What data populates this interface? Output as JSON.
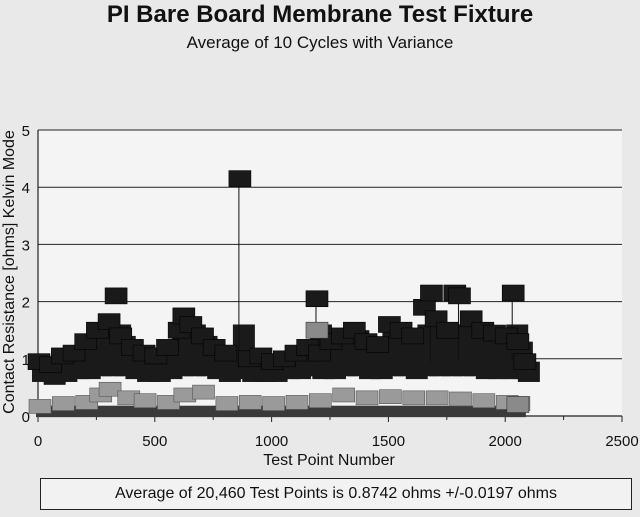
{
  "chart_data": {
    "type": "scatter",
    "title": "PI Bare Board Membrane Test Fixture",
    "subtitle": "Average of 10 Cycles with Variance",
    "xlabel": "Test Point Number",
    "ylabel": "Contact Resistance [ohms] Kelvin Mode",
    "xlim": [
      0,
      2500
    ],
    "ylim": [
      0,
      5
    ],
    "x_ticks": [
      0,
      500,
      1000,
      1500,
      2000,
      2500
    ],
    "y_ticks": [
      0,
      1,
      2,
      3,
      4,
      5
    ],
    "grid": "horizontal",
    "series": [
      {
        "values_x": [
          0,
          50,
          100,
          150,
          200,
          250,
          300,
          330,
          350,
          400,
          450,
          500,
          550,
          600,
          620,
          650,
          700,
          750,
          800,
          860,
          900,
          950,
          1000,
          1050,
          1100,
          1150,
          1190,
          1200,
          1250,
          1300,
          1350,
          1400,
          1450,
          1500,
          1550,
          1600,
          1650,
          1680,
          1700,
          1750,
          1780,
          1800,
          1850,
          1900,
          1950,
          2000,
          2030,
          2050,
          2080
        ],
        "values_y": [
          0.95,
          0.9,
          1.05,
          1.1,
          1.3,
          1.5,
          1.65,
          2.1,
          1.4,
          1.2,
          1.1,
          1.05,
          1.2,
          1.5,
          1.75,
          1.6,
          1.4,
          1.2,
          1.1,
          4.15,
          1.0,
          1.05,
          0.95,
          1.0,
          1.1,
          1.2,
          2.05,
          1.1,
          1.3,
          1.4,
          1.5,
          1.3,
          1.25,
          1.6,
          1.5,
          1.4,
          1.9,
          2.15,
          1.7,
          1.5,
          2.15,
          2.1,
          1.7,
          1.5,
          1.45,
          1.4,
          2.15,
          1.3,
          0.95
        ],
        "spread_low": [
          0.7,
          0.65,
          0.7,
          0.75,
          0.75,
          0.8,
          0.8,
          0.85,
          0.8,
          0.75,
          0.7,
          0.7,
          0.75,
          0.8,
          0.85,
          0.8,
          0.8,
          0.75,
          0.7,
          0.75,
          0.7,
          0.7,
          0.7,
          0.75,
          0.75,
          0.8,
          0.8,
          0.75,
          0.75,
          0.8,
          0.8,
          0.75,
          0.75,
          0.8,
          0.8,
          0.75,
          0.8,
          0.85,
          0.8,
          0.8,
          0.85,
          0.8,
          0.8,
          0.75,
          0.75,
          0.75,
          0.8,
          0.75,
          0.7
        ],
        "color": "#1a1a1a"
      },
      {
        "values_x": [
          0,
          100,
          200,
          260,
          300,
          380,
          450,
          550,
          620,
          700,
          800,
          900,
          1000,
          1100,
          1200,
          1300,
          1400,
          1500,
          1600,
          1700,
          1800,
          1900,
          2000,
          2050
        ],
        "values_y": [
          0.15,
          0.2,
          0.22,
          0.35,
          0.45,
          0.3,
          0.25,
          0.22,
          0.35,
          0.4,
          0.2,
          0.22,
          0.2,
          0.22,
          0.25,
          0.35,
          0.3,
          0.32,
          0.3,
          0.3,
          0.28,
          0.25,
          0.22,
          0.2
        ],
        "color": "#9a9a9a"
      },
      {
        "baseline_x": [
          0,
          2080
        ],
        "baseline_y": 0.05,
        "color": "#3a3a3a"
      }
    ],
    "outlier_stems": [
      {
        "x": 860,
        "y": 4.15
      },
      {
        "x": 1190,
        "y": 2.05
      },
      {
        "x": 1680,
        "y": 2.15
      },
      {
        "x": 1800,
        "y": 2.15
      },
      {
        "x": 2030,
        "y": 2.15
      },
      {
        "x": 1190,
        "y": 1.5
      }
    ],
    "annotation": "Average of 20,460 Test Points is 0.8742 ohms +/-0.0197 ohms"
  }
}
